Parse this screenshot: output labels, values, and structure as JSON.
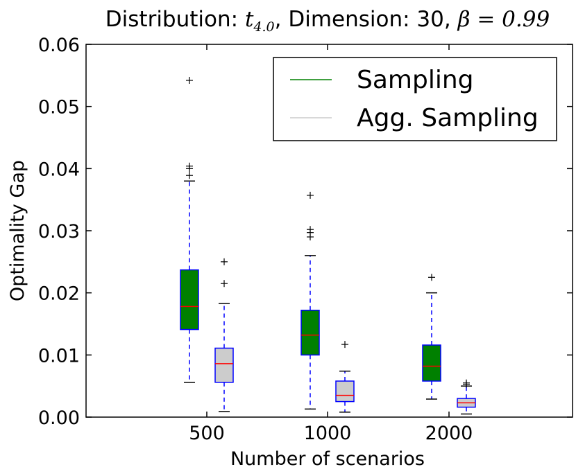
{
  "chart_data": {
    "type": "box",
    "title": {
      "prefix": "Distribution: ",
      "dist_symbol": "t",
      "dist_sub": "4.0",
      "middle": ", Dimension: 30, ",
      "beta_symbol": "β",
      "beta_equals": " = 0.99"
    },
    "xlabel": "Number of scenarios",
    "ylabel": "Optimality Gap",
    "categories": [
      "500",
      "1000",
      "2000"
    ],
    "ylim": [
      0.0,
      0.06
    ],
    "yticks": [
      "0.00",
      "0.01",
      "0.02",
      "0.03",
      "0.04",
      "0.05",
      "0.06"
    ],
    "ytick_values": [
      0.0,
      0.01,
      0.02,
      0.03,
      0.04,
      0.05,
      0.06
    ],
    "legend": {
      "position": "top-right"
    },
    "series": [
      {
        "name": "Sampling",
        "color": "#008000",
        "boxes": [
          {
            "category": "500",
            "whisker_low": 0.0056,
            "q1": 0.0141,
            "median": 0.0178,
            "q3": 0.0237,
            "whisker_high": 0.038,
            "outliers": [
              0.0389,
              0.04,
              0.0404,
              0.0542
            ]
          },
          {
            "category": "1000",
            "whisker_low": 0.0013,
            "q1": 0.01,
            "median": 0.0132,
            "q3": 0.0172,
            "whisker_high": 0.026,
            "outliers": [
              0.029,
              0.0297,
              0.0302,
              0.0357
            ]
          },
          {
            "category": "2000",
            "whisker_low": 0.0029,
            "q1": 0.0058,
            "median": 0.0082,
            "q3": 0.0116,
            "whisker_high": 0.02,
            "outliers": [
              0.0225
            ]
          }
        ]
      },
      {
        "name": "Agg. Sampling",
        "color": "#cccccc",
        "boxes": [
          {
            "category": "500",
            "whisker_low": 0.0009,
            "q1": 0.0056,
            "median": 0.0086,
            "q3": 0.0111,
            "whisker_high": 0.0183,
            "outliers": [
              0.0215,
              0.025
            ]
          },
          {
            "category": "1000",
            "whisker_low": 0.0008,
            "q1": 0.0025,
            "median": 0.0035,
            "q3": 0.0058,
            "whisker_high": 0.0074,
            "outliers": [
              0.0117
            ]
          },
          {
            "category": "2000",
            "whisker_low": 0.0005,
            "q1": 0.0016,
            "median": 0.0023,
            "q3": 0.003,
            "whisker_high": 0.005,
            "outliers": [
              0.0053,
              0.0055
            ]
          }
        ]
      }
    ]
  },
  "colors": {
    "box_edge": "#0000ff",
    "median": "#ff0000",
    "whisker": "#0000ff",
    "flier": "#000000",
    "axes": "#000000"
  }
}
